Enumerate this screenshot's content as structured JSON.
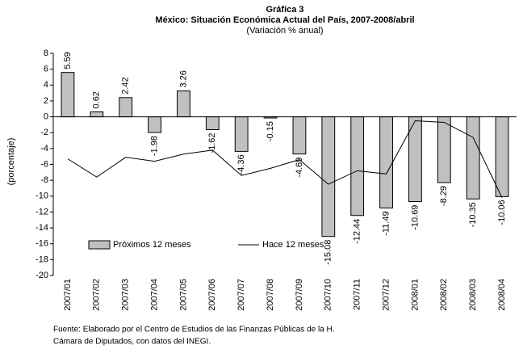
{
  "chart_data": {
    "type": "bar",
    "title": "Gráfica 3",
    "subtitle": "México: Situación Económica Actual del País, 2007-2008/abril",
    "subtitle2": "(Variación % anual)",
    "y_label": "(porcentaje)",
    "categories": [
      "2007/01",
      "2007/02",
      "2007/03",
      "2007/04",
      "2007/05",
      "2007/06",
      "2007/07",
      "2007/08",
      "2007/09",
      "2007/10",
      "2007/11",
      "2007/12",
      "2008/01",
      "2008/02",
      "2008/03",
      "2008/04"
    ],
    "series": [
      {
        "name": "Próximos 12 meses",
        "type": "bar",
        "color": "#c0c0c0",
        "values": [
          5.59,
          0.62,
          2.42,
          -1.98,
          3.26,
          -1.62,
          -4.36,
          -0.15,
          -4.69,
          -15.08,
          -12.44,
          -11.49,
          -10.69,
          -8.29,
          -10.35,
          -10.06
        ]
      },
      {
        "name": "Hace 12 meses",
        "type": "line",
        "color": "#000000",
        "values": [
          -5.3,
          -7.6,
          -5.1,
          -5.6,
          -4.7,
          -4.2,
          -7.4,
          -6.5,
          -5.4,
          -8.5,
          -6.8,
          -7.2,
          -0.5,
          -0.7,
          -2.6,
          -10.2
        ]
      }
    ],
    "ylim": [
      -20,
      8
    ],
    "yticks": [
      -20,
      -18,
      -16,
      -14,
      -12,
      -10,
      -8,
      -6,
      -4,
      -2,
      0,
      2,
      4,
      6,
      8
    ],
    "grid": false,
    "legend": "lower left",
    "source": [
      "Fuente: Elaborado por el Centro de Estudios de las Finanzas Públicas de la H.",
      "Cámara de Diputados, con datos del INEGI."
    ]
  }
}
